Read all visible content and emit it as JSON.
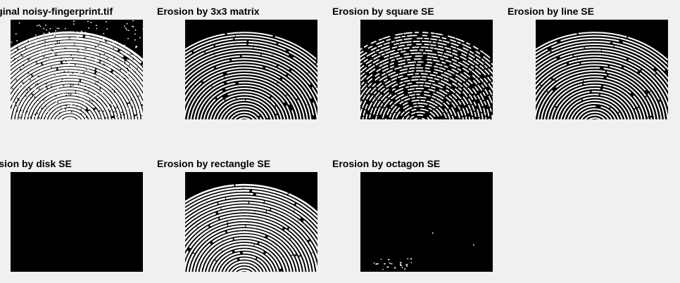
{
  "figure": {
    "background": "#f0f0f0",
    "panels": [
      {
        "id": "original",
        "title": "Original noisy-fingerprint.tif",
        "image": "noisy fingerprint",
        "ridges": "noisy"
      },
      {
        "id": "erosion-3x3",
        "title": "Erosion by 3x3 matrix",
        "image": "eroded fingerprint",
        "ridges": "thin"
      },
      {
        "id": "erosion-square",
        "title": "Erosion by square SE",
        "image": "eroded fingerprint",
        "ridges": "broken"
      },
      {
        "id": "erosion-line",
        "title": "Erosion by line SE",
        "image": "eroded fingerprint",
        "ridges": "thin"
      },
      {
        "id": "erosion-disk",
        "title": "Erosion by disk SE",
        "image": "black image",
        "ridges": "none"
      },
      {
        "id": "erosion-rectangle",
        "title": "Erosion by rectangle SE",
        "image": "eroded fingerprint",
        "ridges": "medium"
      },
      {
        "id": "erosion-octagon",
        "title": "Erosion by octagon SE",
        "image": "mostly black image",
        "ridges": "specks"
      }
    ]
  }
}
